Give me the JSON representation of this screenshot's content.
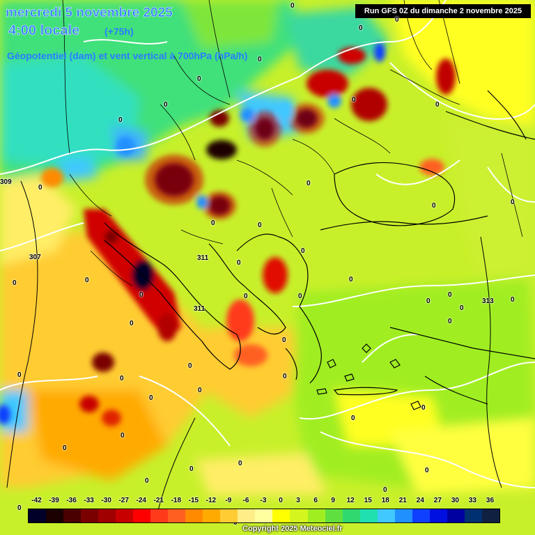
{
  "header": {
    "date": "mercredi 5 novembre 2025",
    "time": "4:00 locale",
    "offset": "(+75h)",
    "variable": "Géopotentiel (dam) et vent vertical à 700hPa (hPa/h)",
    "run": "Run GFS 0Z du dimanche 2 novembre 2025"
  },
  "legend": {
    "labels": [
      "-42",
      "-39",
      "-36",
      "-33",
      "-30",
      "-27",
      "-24",
      "-21",
      "-18",
      "-15",
      "-12",
      "-9",
      "-6",
      "-3",
      "0",
      "3",
      "6",
      "9",
      "12",
      "15",
      "18",
      "21",
      "24",
      "27",
      "30",
      "33",
      "36"
    ],
    "colors": [
      "#000028",
      "#1a0000",
      "#4a0000",
      "#7a0000",
      "#a00000",
      "#c80000",
      "#ff0000",
      "#ff3a1a",
      "#ff6020",
      "#ff8a00",
      "#ffaa00",
      "#ffcc33",
      "#ffee88",
      "#ffffa0",
      "#ffff00",
      "#d4f51e",
      "#a0ee20",
      "#60e040",
      "#30d870",
      "#20e0b0",
      "#40c8ff",
      "#2090ff",
      "#1040ff",
      "#0010e0",
      "#0000a0",
      "#003070",
      "#102040"
    ]
  },
  "contours": {
    "labels": [
      "309",
      "307",
      "311",
      "311",
      "313"
    ]
  },
  "zeros": "0",
  "copyright": "Copyright 2025 Meteociel.fr"
}
